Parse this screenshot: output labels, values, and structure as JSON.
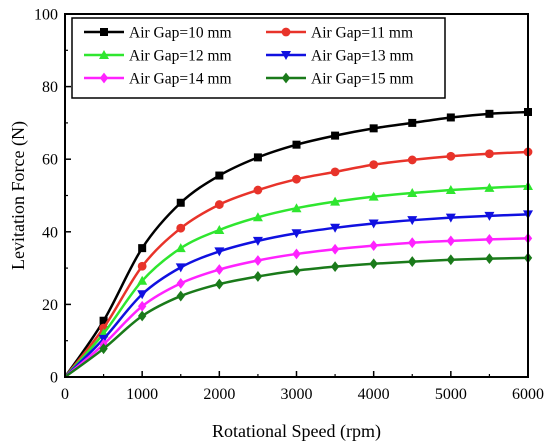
{
  "chart_data": {
    "type": "line",
    "xlabel": "Rotational Speed (rpm)",
    "ylabel": "Levitation Force (N)",
    "xlim": [
      0,
      6000
    ],
    "ylim": [
      0,
      100
    ],
    "x_ticks": [
      0,
      1000,
      2000,
      3000,
      4000,
      5000,
      6000
    ],
    "y_ticks": [
      0,
      20,
      40,
      60,
      80,
      100
    ],
    "grid": false,
    "legend_placement": "top-left",
    "x": [
      0,
      500,
      1000,
      1500,
      2000,
      2500,
      3000,
      3500,
      4000,
      4500,
      5000,
      5500,
      6000
    ],
    "series": [
      {
        "name": "Air Gap=10 mm",
        "color": "#000000",
        "marker": "square",
        "values": [
          0,
          15.5,
          35.5,
          48,
          55.5,
          60.5,
          64,
          66.5,
          68.5,
          70,
          71.5,
          72.5,
          73
        ]
      },
      {
        "name": "Air Gap=11 mm",
        "color": "#e8332a",
        "marker": "circle",
        "values": [
          0,
          13.5,
          30.5,
          41,
          47.5,
          51.5,
          54.5,
          56.5,
          58.5,
          59.8,
          60.8,
          61.5,
          62
        ]
      },
      {
        "name": "Air Gap=12 mm",
        "color": "#2fe62f",
        "marker": "triangle-up",
        "values": [
          0,
          12,
          26.5,
          35.5,
          40.5,
          44,
          46.5,
          48.3,
          49.7,
          50.7,
          51.5,
          52.1,
          52.6
        ]
      },
      {
        "name": "Air Gap=13 mm",
        "color": "#1010e0",
        "marker": "triangle-down",
        "values": [
          0,
          10.5,
          22.8,
          30.2,
          34.6,
          37.5,
          39.6,
          41.1,
          42.3,
          43.2,
          43.9,
          44.4,
          44.8
        ]
      },
      {
        "name": "Air Gap=14 mm",
        "color": "#ff22ff",
        "marker": "diamond",
        "values": [
          0,
          9,
          19.5,
          25.8,
          29.6,
          32.1,
          33.9,
          35.2,
          36.2,
          37,
          37.5,
          37.9,
          38.2
        ]
      },
      {
        "name": "Air Gap=15 mm",
        "color": "#1a7a1a",
        "marker": "diamond",
        "values": [
          0,
          7.8,
          16.8,
          22.3,
          25.6,
          27.7,
          29.3,
          30.4,
          31.2,
          31.8,
          32.3,
          32.6,
          32.8
        ]
      }
    ]
  }
}
